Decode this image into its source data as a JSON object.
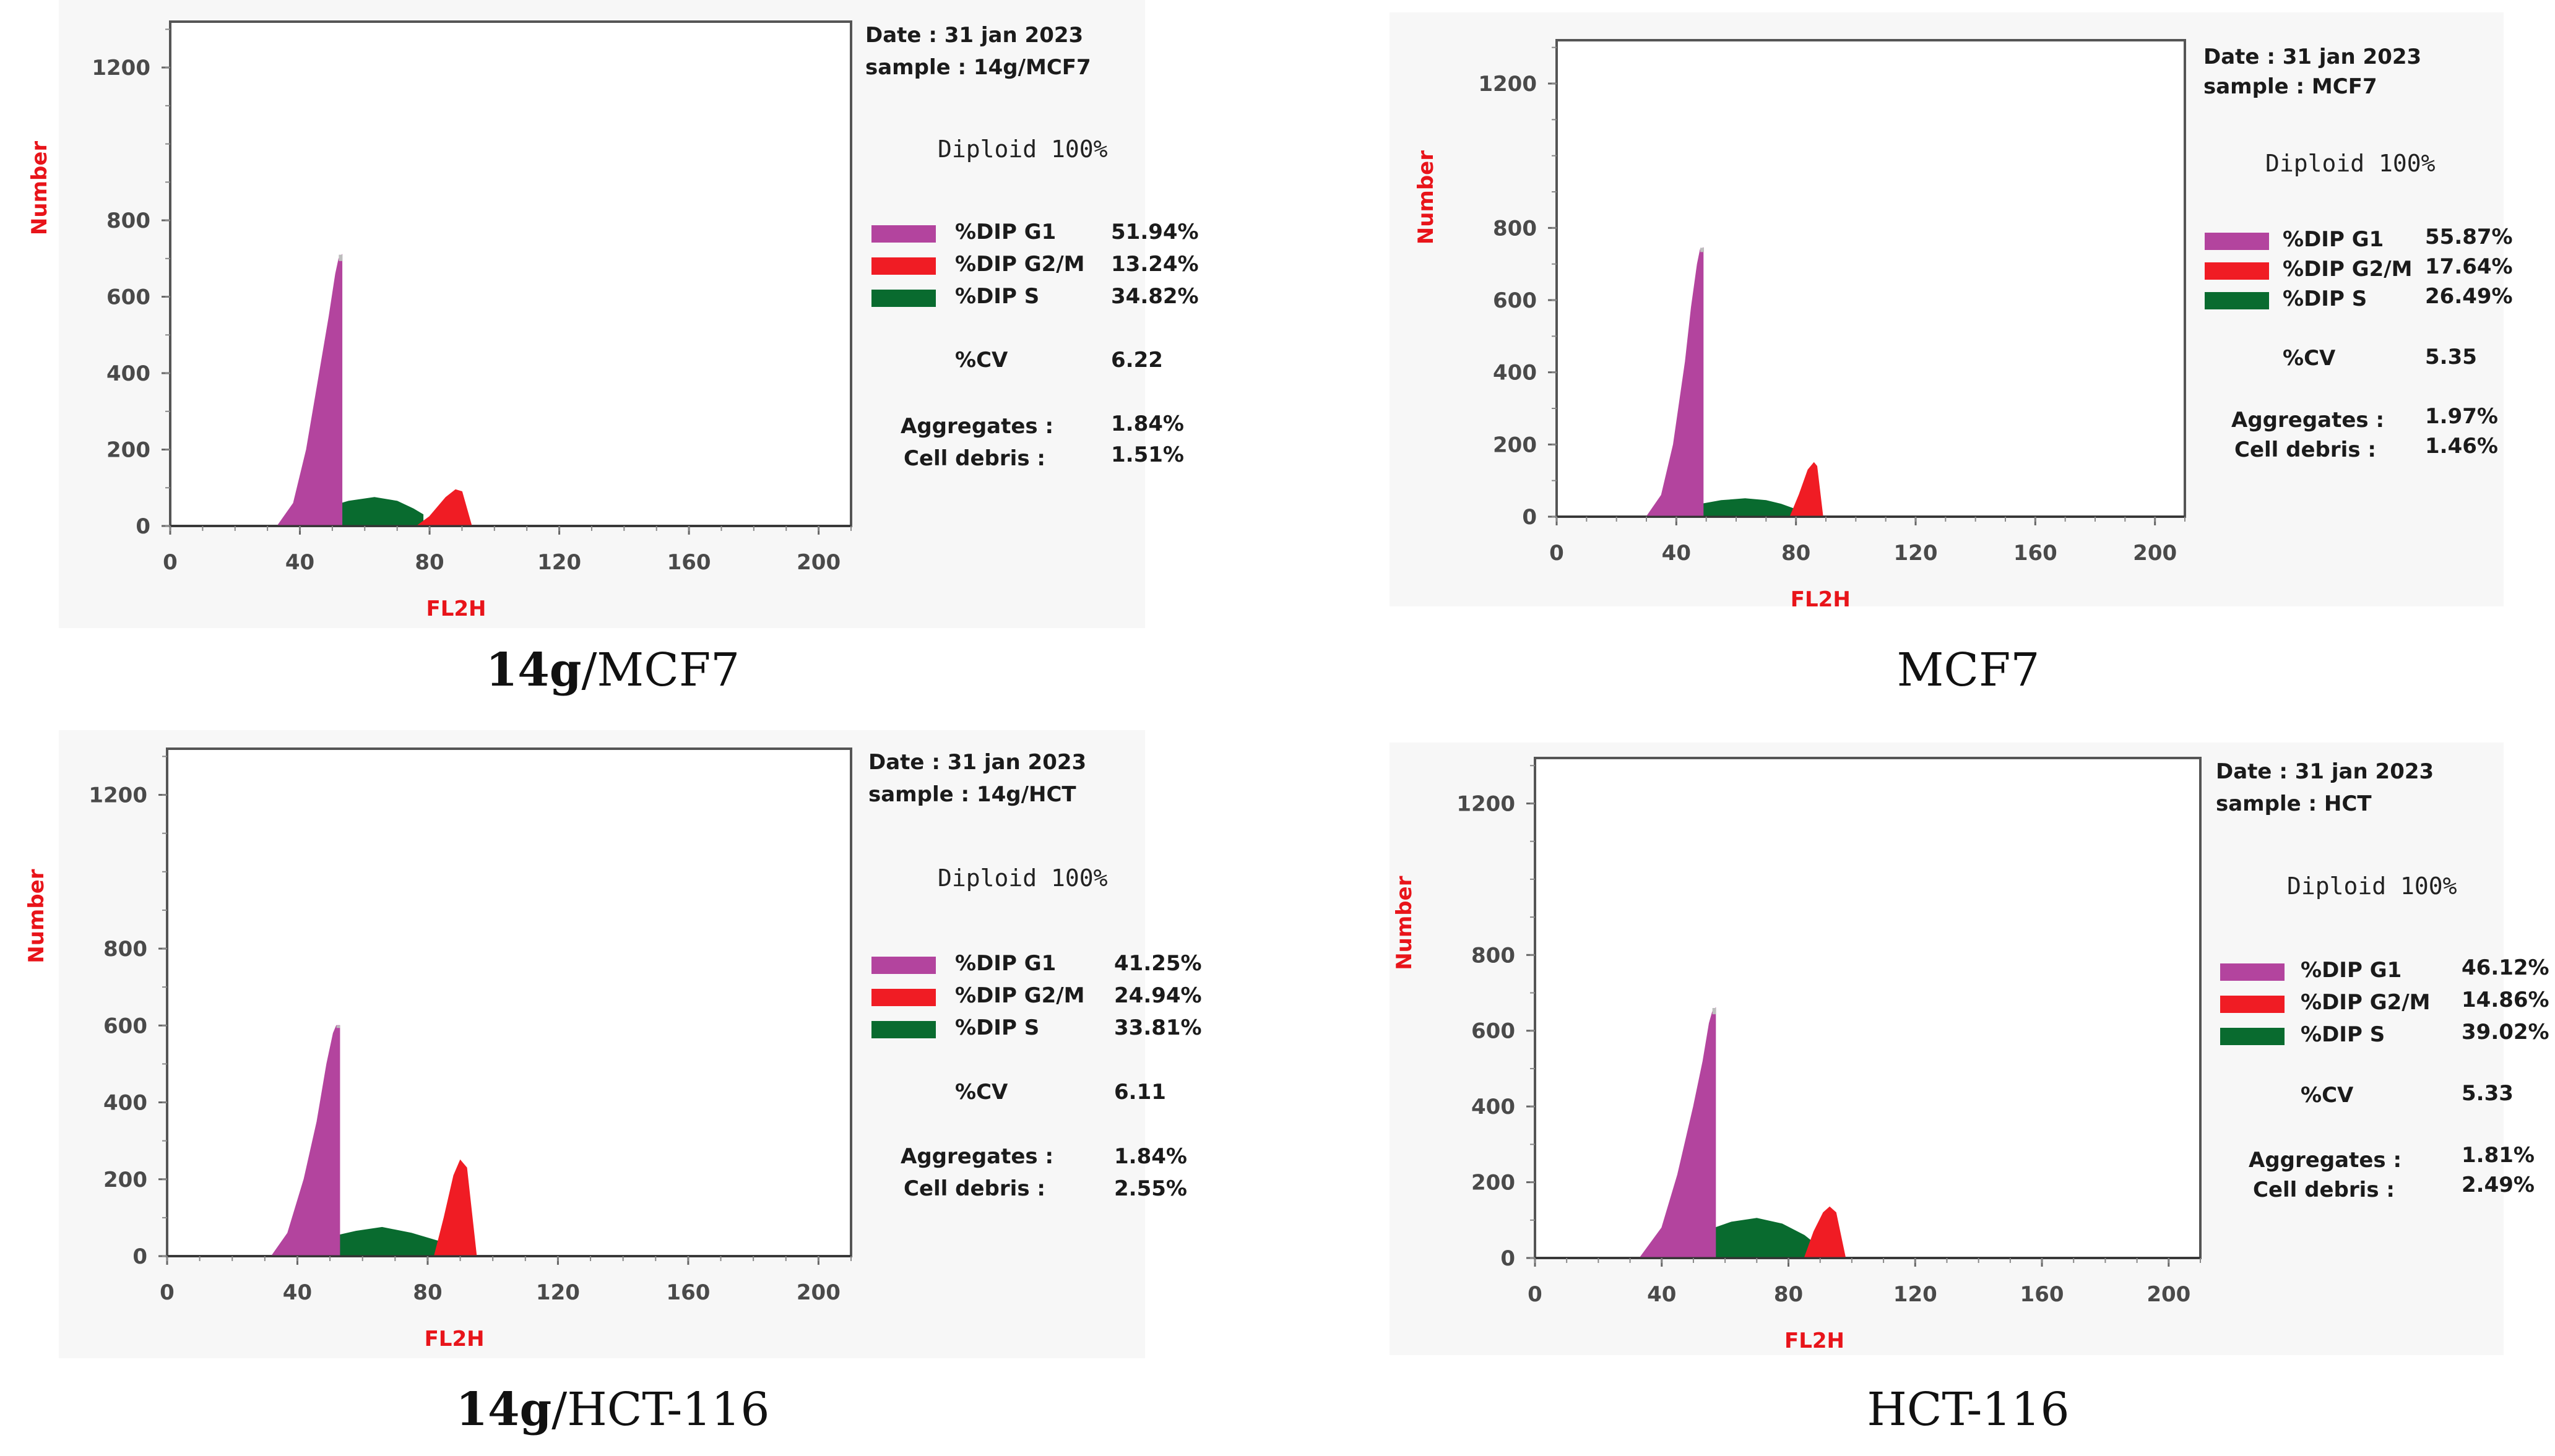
{
  "colors": {
    "g1": "#b3449e",
    "g2m": "#f01c24",
    "s": "#096b2f",
    "grid_frame": "#555555",
    "axis_label": "#e8141a",
    "peak_tip": "#bdbdbd"
  },
  "panels": [
    {
      "caption_bold": "14g",
      "caption_rest": "/MCF7",
      "date": "Date : 31 jan 2023",
      "sample": "sample : 14g/MCF7",
      "diploid": "Diploid 100%",
      "legend": [
        {
          "label": "%DIP G1",
          "value": "51.94%"
        },
        {
          "label": "%DIP G2/M",
          "value": "13.24%"
        },
        {
          "label": "%DIP S",
          "value": "34.82%"
        }
      ],
      "cv_label": "%CV",
      "cv_value": "6.22",
      "aggregates_label": "Aggregates :",
      "aggregates_value": "1.84%",
      "debris_label": "Cell debris :",
      "debris_value": "1.51%"
    },
    {
      "caption_bold": "",
      "caption_rest": "MCF7",
      "date": "Date : 31 jan 2023",
      "sample": "sample : MCF7",
      "diploid": "Diploid 100%",
      "legend": [
        {
          "label": "%DIP G1",
          "value": "55.87%"
        },
        {
          "label": "%DIP G2/M",
          "value": "17.64%"
        },
        {
          "label": "%DIP S",
          "value": "26.49%"
        }
      ],
      "cv_label": "%CV",
      "cv_value": "5.35",
      "aggregates_label": "Aggregates :",
      "aggregates_value": "1.97%",
      "debris_label": "Cell debris :",
      "debris_value": "1.46%"
    },
    {
      "caption_bold": "14g",
      "caption_rest": "/HCT-116",
      "date": "Date : 31 jan 2023",
      "sample": "sample : 14g/HCT",
      "diploid": "Diploid 100%",
      "legend": [
        {
          "label": "%DIP G1",
          "value": "41.25%"
        },
        {
          "label": "%DIP G2/M",
          "value": "24.94%"
        },
        {
          "label": "%DIP S",
          "value": "33.81%"
        }
      ],
      "cv_label": "%CV",
      "cv_value": "6.11",
      "aggregates_label": "Aggregates :",
      "aggregates_value": "1.84%",
      "debris_label": "Cell debris :",
      "debris_value": "2.55%"
    },
    {
      "caption_bold": "",
      "caption_rest": "HCT-116",
      "date": "Date : 31 jan 2023",
      "sample": "sample : HCT",
      "diploid": "Diploid 100%",
      "legend": [
        {
          "label": "%DIP G1",
          "value": "46.12%"
        },
        {
          "label": "%DIP G2/M",
          "value": "14.86%"
        },
        {
          "label": "%DIP S",
          "value": "39.02%"
        }
      ],
      "cv_label": "%CV",
      "cv_value": "5.33",
      "aggregates_label": "Aggregates :",
      "aggregates_value": "1.81%",
      "debris_label": "Cell debris :",
      "debris_value": "2.49%"
    }
  ],
  "chart_data": [
    {
      "type": "area",
      "title": "14g/MCF7",
      "xlabel": "FL2H",
      "ylabel": "Number",
      "xlim": [
        0,
        210
      ],
      "ylim": [
        0,
        1320
      ],
      "xticks": [
        "0",
        "40",
        "80",
        "120",
        "160",
        "200"
      ],
      "yticks": [
        "0",
        "200",
        "400",
        "600",
        "800",
        "1200"
      ],
      "series": [
        {
          "name": "%DIP G1",
          "x": [
            33,
            38,
            42,
            46,
            49,
            51,
            52,
            53
          ],
          "y": [
            0,
            60,
            200,
            400,
            550,
            660,
            700,
            710
          ]
        },
        {
          "name": "%DIP S",
          "x": [
            33,
            45,
            55,
            63,
            70,
            75,
            78
          ],
          "y": [
            0,
            40,
            65,
            75,
            65,
            45,
            30
          ]
        },
        {
          "name": "%DIP G2/M",
          "x": [
            76,
            80,
            85,
            88,
            90,
            93
          ],
          "y": [
            0,
            25,
            75,
            95,
            90,
            0
          ]
        }
      ]
    },
    {
      "type": "area",
      "title": "MCF7",
      "xlabel": "FL2H",
      "ylabel": "Number",
      "xlim": [
        0,
        210
      ],
      "ylim": [
        0,
        1320
      ],
      "xticks": [
        "0",
        "40",
        "80",
        "120",
        "160",
        "200"
      ],
      "yticks": [
        "0",
        "200",
        "400",
        "600",
        "800",
        "1200"
      ],
      "series": [
        {
          "name": "%DIP G1",
          "x": [
            30,
            35,
            39,
            43,
            45,
            47,
            48,
            49
          ],
          "y": [
            0,
            60,
            200,
            430,
            580,
            700,
            740,
            745
          ]
        },
        {
          "name": "%DIP S",
          "x": [
            30,
            45,
            55,
            63,
            70,
            75,
            80
          ],
          "y": [
            0,
            30,
            45,
            50,
            45,
            35,
            20
          ]
        },
        {
          "name": "%DIP G2/M",
          "x": [
            78,
            81,
            84,
            86,
            87,
            89
          ],
          "y": [
            0,
            60,
            130,
            150,
            140,
            0
          ]
        }
      ]
    },
    {
      "type": "area",
      "title": "14g/HCT-116",
      "xlabel": "FL2H",
      "ylabel": "Number",
      "xlim": [
        0,
        210
      ],
      "ylim": [
        0,
        1320
      ],
      "xticks": [
        "0",
        "40",
        "80",
        "120",
        "160",
        "200"
      ],
      "yticks": [
        "0",
        "200",
        "400",
        "600",
        "800",
        "1200"
      ],
      "series": [
        {
          "name": "%DIP G1",
          "x": [
            32,
            37,
            42,
            46,
            49,
            51,
            52,
            53
          ],
          "y": [
            0,
            60,
            200,
            350,
            500,
            580,
            600,
            600
          ]
        },
        {
          "name": "%DIP S",
          "x": [
            32,
            45,
            58,
            66,
            75,
            83,
            87
          ],
          "y": [
            0,
            40,
            65,
            75,
            60,
            40,
            30
          ]
        },
        {
          "name": "%DIP G2/M",
          "x": [
            82,
            85,
            88,
            90,
            92,
            95
          ],
          "y": [
            0,
            100,
            210,
            250,
            230,
            0
          ]
        }
      ]
    },
    {
      "type": "area",
      "title": "HCT-116",
      "xlabel": "FL2H",
      "ylabel": "Number",
      "xlim": [
        0,
        210
      ],
      "ylim": [
        0,
        1320
      ],
      "xticks": [
        "0",
        "40",
        "80",
        "120",
        "160",
        "200"
      ],
      "yticks": [
        "0",
        "200",
        "400",
        "600",
        "800",
        "1200"
      ],
      "series": [
        {
          "name": "%DIP G1",
          "x": [
            33,
            40,
            45,
            50,
            53,
            55,
            56,
            57
          ],
          "y": [
            0,
            80,
            220,
            400,
            520,
            620,
            650,
            660
          ]
        },
        {
          "name": "%DIP S",
          "x": [
            33,
            50,
            62,
            70,
            78,
            85,
            88
          ],
          "y": [
            0,
            60,
            95,
            105,
            90,
            60,
            40
          ]
        },
        {
          "name": "%DIP G2/M",
          "x": [
            85,
            88,
            91,
            93,
            95,
            98
          ],
          "y": [
            0,
            70,
            120,
            135,
            120,
            0
          ]
        }
      ]
    }
  ]
}
